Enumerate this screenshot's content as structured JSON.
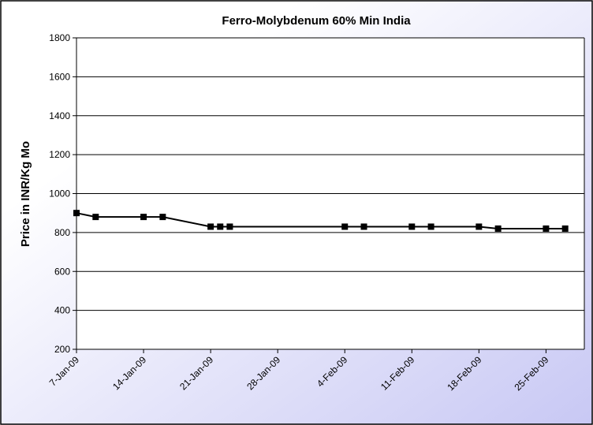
{
  "chart_data": {
    "type": "line",
    "title": "Ferro-Molybdenum 60% Min India",
    "y_label": "Price in INR/Kg Mo",
    "x": [
      "2009-01-07",
      "2009-01-09",
      "2009-01-14",
      "2009-01-16",
      "2009-01-21",
      "2009-01-22",
      "2009-01-23",
      "2009-02-04",
      "2009-02-06",
      "2009-02-11",
      "2009-02-13",
      "2009-02-18",
      "2009-02-20",
      "2009-02-25",
      "2009-02-27"
    ],
    "series": [
      {
        "name": "Ferro-Molybdenum 60% Min India",
        "color": "#000000",
        "values": [
          900,
          880,
          880,
          880,
          830,
          830,
          830,
          830,
          830,
          830,
          830,
          830,
          820,
          820,
          820
        ]
      }
    ],
    "xlim": [
      "2009-01-07",
      "2009-03-01"
    ],
    "xticks": [
      {
        "value": "2009-01-07",
        "label": "7-Jan-09"
      },
      {
        "value": "2009-01-14",
        "label": "14-Jan-09"
      },
      {
        "value": "2009-01-21",
        "label": "21-Jan-09"
      },
      {
        "value": "2009-01-28",
        "label": "28-Jan-09"
      },
      {
        "value": "2009-02-04",
        "label": "4-Feb-09"
      },
      {
        "value": "2009-02-11",
        "label": "11-Feb-09"
      },
      {
        "value": "2009-02-18",
        "label": "18-Feb-09"
      },
      {
        "value": "2009-02-25",
        "label": "25-Feb-09"
      }
    ],
    "ylim": [
      200,
      1800
    ],
    "yticks": [
      200,
      400,
      600,
      800,
      1000,
      1200,
      1400,
      1600,
      1800
    ],
    "grid": true
  }
}
